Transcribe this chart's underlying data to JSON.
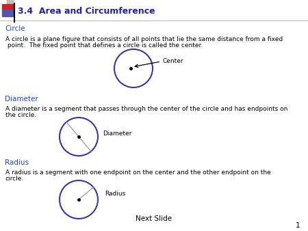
{
  "title": "3.4  Area and Circumference",
  "title_color": "#2222AA",
  "title_fontsize": 9,
  "bg_color": "#FFFFFF",
  "section_color": "#2244CC",
  "body_color": "#000000",
  "section_circle_label": "Circle",
  "section_diameter_label": "Diameter",
  "section_radius_label": "Radius",
  "circle_text_1": "A circle is a plane figure that consists of all points that lie the same distance from a fixed",
  "circle_text_2": " point.  The fixed point that defines a circle is called the center.",
  "diameter_text_1": "A diameter is a segment that passes through the center of the circle and has endpoints on",
  "diameter_text_2": "the circle.",
  "radius_text_1": "A radius is a segment with one endpoint on the center and the other endpoint on the",
  "radius_text_2": "circle.",
  "center_label": "Center",
  "diameter_label": "Diameter",
  "radius_label": "Radius",
  "next_slide": "Next Slide",
  "slide_num": "1",
  "circle_color": "#3333BB",
  "circle_linewidth": 1.5,
  "icon_red": "#CC2222",
  "icon_blue": "#5555AA",
  "icon_gray": "#999999"
}
